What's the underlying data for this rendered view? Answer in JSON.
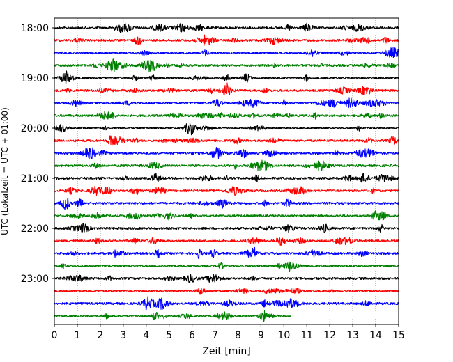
{
  "chart_data": {
    "type": "line",
    "xlabel": "Zeit  [min]",
    "ylabel": "UTC (Lokalzeit = UTC + 01:00)",
    "xlim": [
      0,
      15
    ],
    "x_ticks": [
      "0",
      "1",
      "2",
      "3",
      "4",
      "5",
      "6",
      "7",
      "8",
      "9",
      "10",
      "11",
      "12",
      "13",
      "14",
      "15"
    ],
    "y_ticks": [
      "18:00",
      "19:00",
      "20:00",
      "21:00",
      "22:00",
      "23:00"
    ],
    "grid_x": true,
    "trace_interval_minutes": 15,
    "trace_colors": [
      "#000000",
      "#ff0000",
      "#0000ff",
      "#008000"
    ],
    "traces": [
      {
        "start": "18:00",
        "duration_min": 15
      },
      {
        "start": "18:15",
        "duration_min": 15
      },
      {
        "start": "18:30",
        "duration_min": 15
      },
      {
        "start": "18:45",
        "duration_min": 15
      },
      {
        "start": "19:00",
        "duration_min": 15
      },
      {
        "start": "19:15",
        "duration_min": 15
      },
      {
        "start": "19:30",
        "duration_min": 15
      },
      {
        "start": "19:45",
        "duration_min": 15
      },
      {
        "start": "20:00",
        "duration_min": 15
      },
      {
        "start": "20:15",
        "duration_min": 15
      },
      {
        "start": "20:30",
        "duration_min": 15
      },
      {
        "start": "20:45",
        "duration_min": 15
      },
      {
        "start": "21:00",
        "duration_min": 15
      },
      {
        "start": "21:15",
        "duration_min": 15
      },
      {
        "start": "21:30",
        "duration_min": 15
      },
      {
        "start": "21:45",
        "duration_min": 15
      },
      {
        "start": "22:00",
        "duration_min": 15
      },
      {
        "start": "22:15",
        "duration_min": 15
      },
      {
        "start": "22:30",
        "duration_min": 15
      },
      {
        "start": "22:45",
        "duration_min": 15
      },
      {
        "start": "23:00",
        "duration_min": 15
      },
      {
        "start": "23:15",
        "duration_min": 15
      },
      {
        "start": "23:30",
        "duration_min": 15
      },
      {
        "start": "23:45",
        "duration_min": 10.3
      }
    ]
  }
}
